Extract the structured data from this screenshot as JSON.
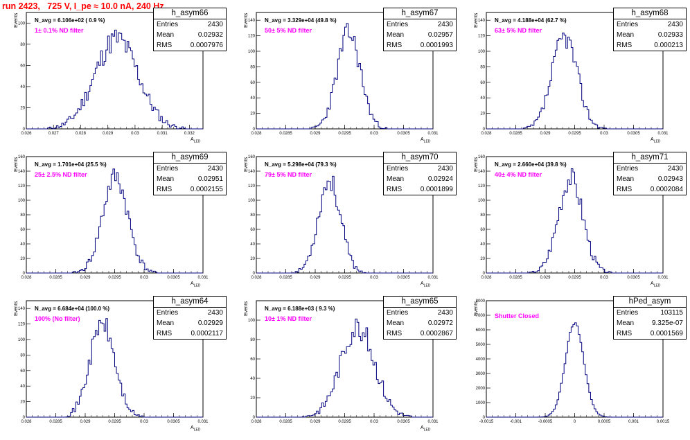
{
  "header": {
    "title": "run 2423,   725 V, I_pe ≈ 10.0 nA, 240 Hz"
  },
  "axis_text": {
    "ytitle": "Events",
    "xtitle_main": "A",
    "xtitle_sub": "LED"
  },
  "stat_labels": {
    "entries": "Entries",
    "mean": "Mean",
    "rms": "RMS"
  },
  "chart_data": [
    {
      "type": "bar",
      "title": "h_asym66",
      "navg": "N_avg = 6.106e+02 ( 0.9 %)",
      "filter": "1± 0.1% ND filter",
      "stats": {
        "entries": "2430",
        "mean": "0.02932",
        "rms": "0.0007976"
      },
      "xlim": [
        0.026,
        0.0325
      ],
      "ylim": [
        0,
        110
      ],
      "xticks": [
        "0.026",
        "0.027",
        "0.028",
        "0.029",
        "0.03",
        "0.031",
        "0.032"
      ],
      "yticks": [
        "0",
        "20",
        "40",
        "60",
        "80",
        "100"
      ],
      "mean": 0.02932,
      "rms": 0.0007976,
      "peak": 100,
      "seed": 11
    },
    {
      "type": "bar",
      "title": "h_asym67",
      "navg": "N_avg = 3.329e+04 (49.8 %)",
      "filter": "50± 5% ND filter",
      "stats": {
        "entries": "2430",
        "mean": "0.02957",
        "rms": "0.0001993"
      },
      "xlim": [
        0.028,
        0.031
      ],
      "ylim": [
        0,
        150
      ],
      "xticks": [
        "0.028",
        "0.0285",
        "0.029",
        "0.0295",
        "0.03",
        "0.0305",
        "0.031"
      ],
      "yticks": [
        "0",
        "20",
        "40",
        "60",
        "80",
        "100",
        "120",
        "140"
      ],
      "mean": 0.02957,
      "rms": 0.0001993,
      "peak": 145,
      "seed": 23
    },
    {
      "type": "bar",
      "title": "h_asym68",
      "navg": "N_avg = 4.188e+04 (62.7 %)",
      "filter": "63± 5% ND filter",
      "stats": {
        "entries": "2430",
        "mean": "0.02933",
        "rms": "0.000213"
      },
      "xlim": [
        0.028,
        0.031
      ],
      "ylim": [
        0,
        150
      ],
      "xticks": [
        "0.028",
        "0.0285",
        "0.029",
        "0.0295",
        "0.03",
        "0.0305",
        "0.031"
      ],
      "yticks": [
        "0",
        "20",
        "40",
        "60",
        "80",
        "100",
        "120",
        "140"
      ],
      "mean": 0.02933,
      "rms": 0.000213,
      "peak": 140,
      "seed": 37
    },
    {
      "type": "bar",
      "title": "h_asym69",
      "navg": "N_avg = 1.701e+04 (25.5 %)",
      "filter": "25± 2.5% ND filter",
      "stats": {
        "entries": "2430",
        "mean": "0.02951",
        "rms": "0.0002155"
      },
      "xlim": [
        0.028,
        0.031
      ],
      "ylim": [
        0,
        160
      ],
      "xticks": [
        "0.028",
        "0.0285",
        "0.029",
        "0.0295",
        "0.03",
        "0.0305",
        "0.031"
      ],
      "yticks": [
        "0",
        "20",
        "40",
        "60",
        "80",
        "100",
        "120",
        "140",
        "160"
      ],
      "mean": 0.02951,
      "rms": 0.0002155,
      "peak": 155,
      "seed": 41
    },
    {
      "type": "bar",
      "title": "h_asym70",
      "navg": "N_avg = 5.298e+04 (79.3 %)",
      "filter": "79± 5% ND filter",
      "stats": {
        "entries": "2430",
        "mean": "0.02924",
        "rms": "0.0001899"
      },
      "xlim": [
        0.028,
        0.031
      ],
      "ylim": [
        0,
        160
      ],
      "xticks": [
        "0.028",
        "0.0285",
        "0.029",
        "0.0295",
        "0.03",
        "0.0305",
        "0.031"
      ],
      "yticks": [
        "0",
        "20",
        "40",
        "60",
        "80",
        "100",
        "120",
        "140",
        "160"
      ],
      "mean": 0.02924,
      "rms": 0.0001899,
      "peak": 150,
      "seed": 53
    },
    {
      "type": "bar",
      "title": "h_asym71",
      "navg": "N_avg = 2.660e+04 (39.8 %)",
      "filter": "40± 4% ND filter",
      "stats": {
        "entries": "2430",
        "mean": "0.02943",
        "rms": "0.0002084"
      },
      "xlim": [
        0.028,
        0.031
      ],
      "ylim": [
        0,
        160
      ],
      "xticks": [
        "0.028",
        "0.0285",
        "0.029",
        "0.0295",
        "0.03",
        "0.0305",
        "0.031"
      ],
      "yticks": [
        "0",
        "20",
        "40",
        "60",
        "80",
        "100",
        "120",
        "140",
        "160"
      ],
      "mean": 0.02943,
      "rms": 0.0002084,
      "peak": 155,
      "seed": 67
    },
    {
      "type": "bar",
      "title": "h_asym64",
      "navg": "N_avg = 6.684e+04 (100.0 %)",
      "filter": "100% (No filter)",
      "stats": {
        "entries": "2430",
        "mean": "0.02929",
        "rms": "0.0002117"
      },
      "xlim": [
        0.028,
        0.031
      ],
      "ylim": [
        0,
        150
      ],
      "xticks": [
        "0.028",
        "0.0285",
        "0.029",
        "0.0295",
        "0.03",
        "0.0305",
        "0.031"
      ],
      "yticks": [
        "0",
        "20",
        "40",
        "60",
        "80",
        "100",
        "120",
        "140"
      ],
      "mean": 0.02929,
      "rms": 0.0002117,
      "peak": 142,
      "seed": 71
    },
    {
      "type": "bar",
      "title": "h_asym65",
      "navg": "N_avg = 6.188e+03 ( 9.3 %)",
      "filter": "10± 1% ND filter",
      "stats": {
        "entries": "2430",
        "mean": "0.02972",
        "rms": "0.0002867"
      },
      "xlim": [
        0.028,
        0.031
      ],
      "ylim": [
        0,
        120
      ],
      "xticks": [
        "0.028",
        "0.0285",
        "0.029",
        "0.0295",
        "0.03",
        "0.0305",
        "0.031"
      ],
      "yticks": [
        "0",
        "20",
        "40",
        "60",
        "80",
        "100"
      ],
      "mean": 0.02972,
      "rms": 0.0002867,
      "peak": 110,
      "seed": 83
    },
    {
      "type": "bar",
      "title": "hPed_asym",
      "navg": "",
      "filter": "Shutter Closed",
      "stats": {
        "entries": "103115",
        "mean": "9.325e-07",
        "rms": "0.0001569"
      },
      "xlim": [
        -0.0015,
        0.0015
      ],
      "ylim": [
        0,
        8000
      ],
      "xticks": [
        "-0.0015",
        "-0.001",
        "-0.0005",
        "0",
        "0.0005",
        "0.001",
        "0.0015"
      ],
      "yticks": [
        "0",
        "1000",
        "2000",
        "3000",
        "4000",
        "5000",
        "6000",
        "7000",
        "8000"
      ],
      "mean": 0.0,
      "rms": 0.0001569,
      "peak": 7600,
      "seed": 97
    }
  ]
}
